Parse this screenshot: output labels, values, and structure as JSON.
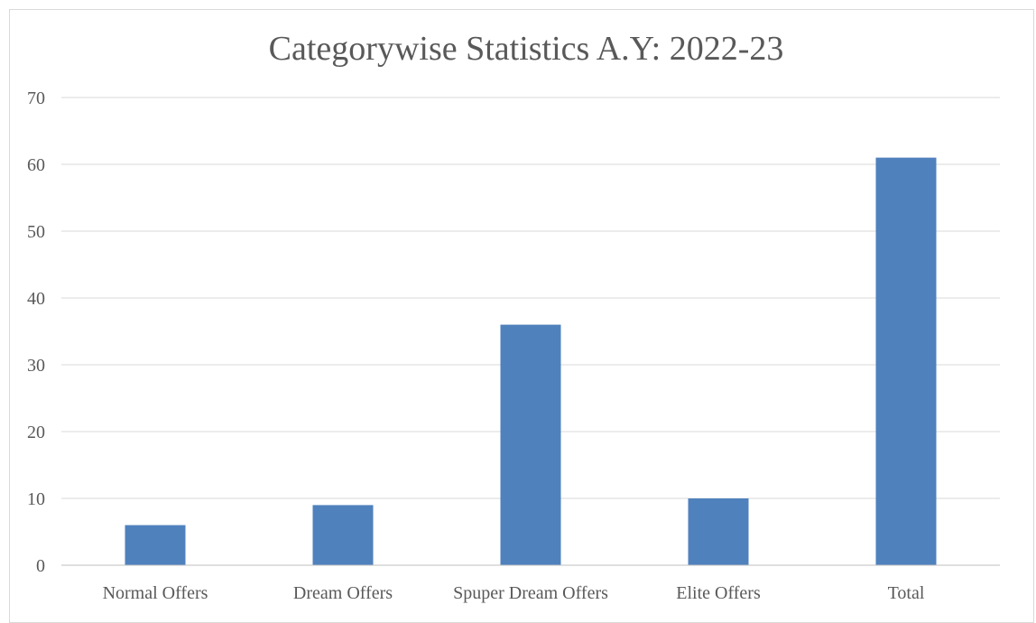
{
  "chart_data": {
    "type": "bar",
    "title": "Categorywise Statistics A.Y: 2022-23",
    "xlabel": "",
    "ylabel": "",
    "categories": [
      "Normal Offers",
      "Dream Offers",
      "Spuper Dream Offers",
      "Elite Offers",
      "Total"
    ],
    "values": [
      6,
      9,
      36,
      10,
      61
    ],
    "ylim": [
      0,
      70
    ],
    "yticks": [
      "0",
      "10",
      "20",
      "30",
      "40",
      "50",
      "60",
      "70"
    ],
    "grid": true,
    "legend": "none",
    "colors": {
      "bar": "#4f81bd",
      "grid": "#d9d9d9",
      "axis": "#bfbfbf",
      "text": "#595959"
    }
  }
}
